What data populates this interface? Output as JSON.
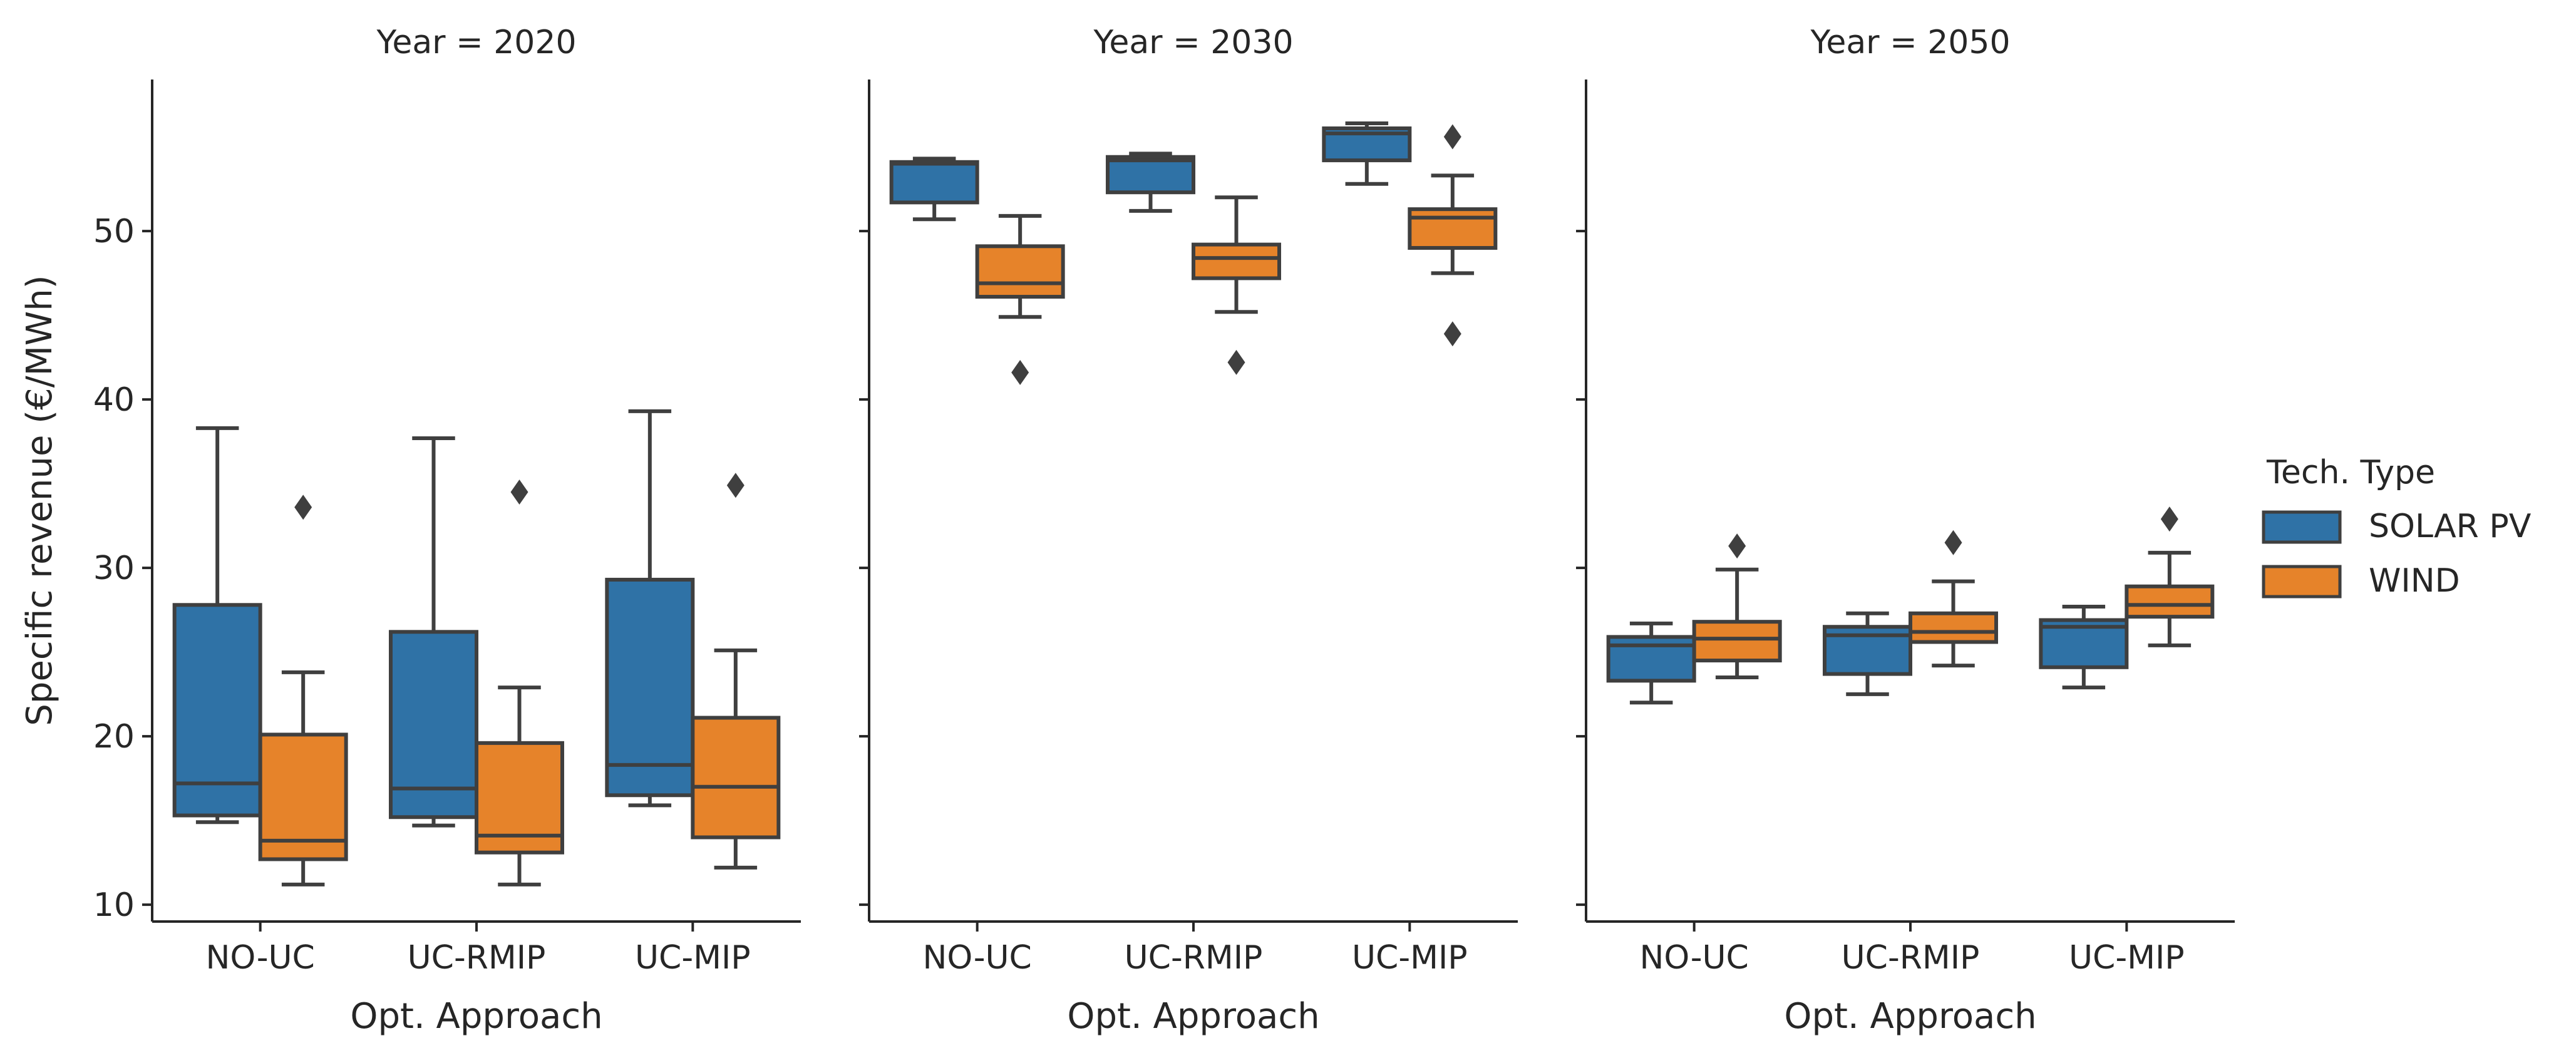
{
  "chart_data": {
    "type": "box",
    "title": "",
    "ylabel": "Specific revenue (€/MWh)",
    "xlabel": "Opt. Approach",
    "ylim": [
      9,
      59
    ],
    "yticks": [
      10,
      20,
      30,
      40,
      50
    ],
    "categories": [
      "NO-UC",
      "UC-RMIP",
      "UC-MIP"
    ],
    "legend": {
      "title": "Tech. Type",
      "position": "right",
      "items": [
        {
          "name": "SOLAR PV",
          "color": "#2f72a6"
        },
        {
          "name": "WIND",
          "color": "#e6832a"
        }
      ]
    },
    "facets": [
      {
        "title": "Year = 2020",
        "xlabel": "Opt. Approach",
        "series": [
          {
            "name": "SOLAR PV",
            "boxes": [
              {
                "category": "NO-UC",
                "min": 14.9,
                "q1": 15.3,
                "median": 17.2,
                "q3": 27.8,
                "max": 38.3,
                "outliers": []
              },
              {
                "category": "UC-RMIP",
                "min": 14.7,
                "q1": 15.2,
                "median": 16.9,
                "q3": 26.2,
                "max": 37.7,
                "outliers": []
              },
              {
                "category": "UC-MIP",
                "min": 15.9,
                "q1": 16.5,
                "median": 18.3,
                "q3": 29.3,
                "max": 39.3,
                "outliers": []
              }
            ]
          },
          {
            "name": "WIND",
            "boxes": [
              {
                "category": "NO-UC",
                "min": 11.2,
                "q1": 12.7,
                "median": 13.8,
                "q3": 20.1,
                "max": 23.8,
                "outliers": [
                  33.6
                ]
              },
              {
                "category": "UC-RMIP",
                "min": 11.2,
                "q1": 13.1,
                "median": 14.1,
                "q3": 19.6,
                "max": 22.9,
                "outliers": [
                  34.5
                ]
              },
              {
                "category": "UC-MIP",
                "min": 12.2,
                "q1": 14.0,
                "median": 17.0,
                "q3": 21.1,
                "max": 25.1,
                "outliers": [
                  34.9
                ]
              }
            ]
          }
        ]
      },
      {
        "title": "Year = 2030",
        "xlabel": "Opt. Approach",
        "series": [
          {
            "name": "SOLAR PV",
            "boxes": [
              {
                "category": "NO-UC",
                "min": 50.7,
                "q1": 51.7,
                "median": 54.0,
                "q3": 54.1,
                "max": 54.3,
                "outliers": []
              },
              {
                "category": "UC-RMIP",
                "min": 51.2,
                "q1": 52.3,
                "median": 54.2,
                "q3": 54.4,
                "max": 54.6,
                "outliers": []
              },
              {
                "category": "UC-MIP",
                "min": 52.8,
                "q1": 54.2,
                "median": 55.8,
                "q3": 56.1,
                "max": 56.4,
                "outliers": []
              }
            ]
          },
          {
            "name": "WIND",
            "boxes": [
              {
                "category": "NO-UC",
                "min": 44.9,
                "q1": 46.1,
                "median": 46.9,
                "q3": 49.1,
                "max": 50.9,
                "outliers": [
                  41.6
                ]
              },
              {
                "category": "UC-RMIP",
                "min": 45.2,
                "q1": 47.2,
                "median": 48.4,
                "q3": 49.2,
                "max": 52.0,
                "outliers": [
                  42.2
                ]
              },
              {
                "category": "UC-MIP",
                "min": 47.5,
                "q1": 49.0,
                "median": 50.8,
                "q3": 51.3,
                "max": 53.3,
                "outliers": [
                  43.9,
                  55.6
                ]
              }
            ]
          }
        ]
      },
      {
        "title": "Year = 2050",
        "xlabel": "Opt. Approach",
        "series": [
          {
            "name": "SOLAR PV",
            "boxes": [
              {
                "category": "NO-UC",
                "min": 22.0,
                "q1": 23.3,
                "median": 25.4,
                "q3": 25.9,
                "max": 26.7,
                "outliers": []
              },
              {
                "category": "UC-RMIP",
                "min": 22.5,
                "q1": 23.7,
                "median": 26.0,
                "q3": 26.5,
                "max": 27.3,
                "outliers": []
              },
              {
                "category": "UC-MIP",
                "min": 22.9,
                "q1": 24.1,
                "median": 26.5,
                "q3": 26.9,
                "max": 27.7,
                "outliers": []
              }
            ]
          },
          {
            "name": "WIND",
            "boxes": [
              {
                "category": "NO-UC",
                "min": 23.5,
                "q1": 24.5,
                "median": 25.8,
                "q3": 26.8,
                "max": 29.9,
                "outliers": [
                  31.3
                ]
              },
              {
                "category": "UC-RMIP",
                "min": 24.2,
                "q1": 25.6,
                "median": 26.2,
                "q3": 27.3,
                "max": 29.2,
                "outliers": [
                  31.5
                ]
              },
              {
                "category": "UC-MIP",
                "min": 25.4,
                "q1": 27.1,
                "median": 27.8,
                "q3": 28.9,
                "max": 30.9,
                "outliers": [
                  32.9
                ]
              }
            ]
          }
        ]
      }
    ]
  }
}
